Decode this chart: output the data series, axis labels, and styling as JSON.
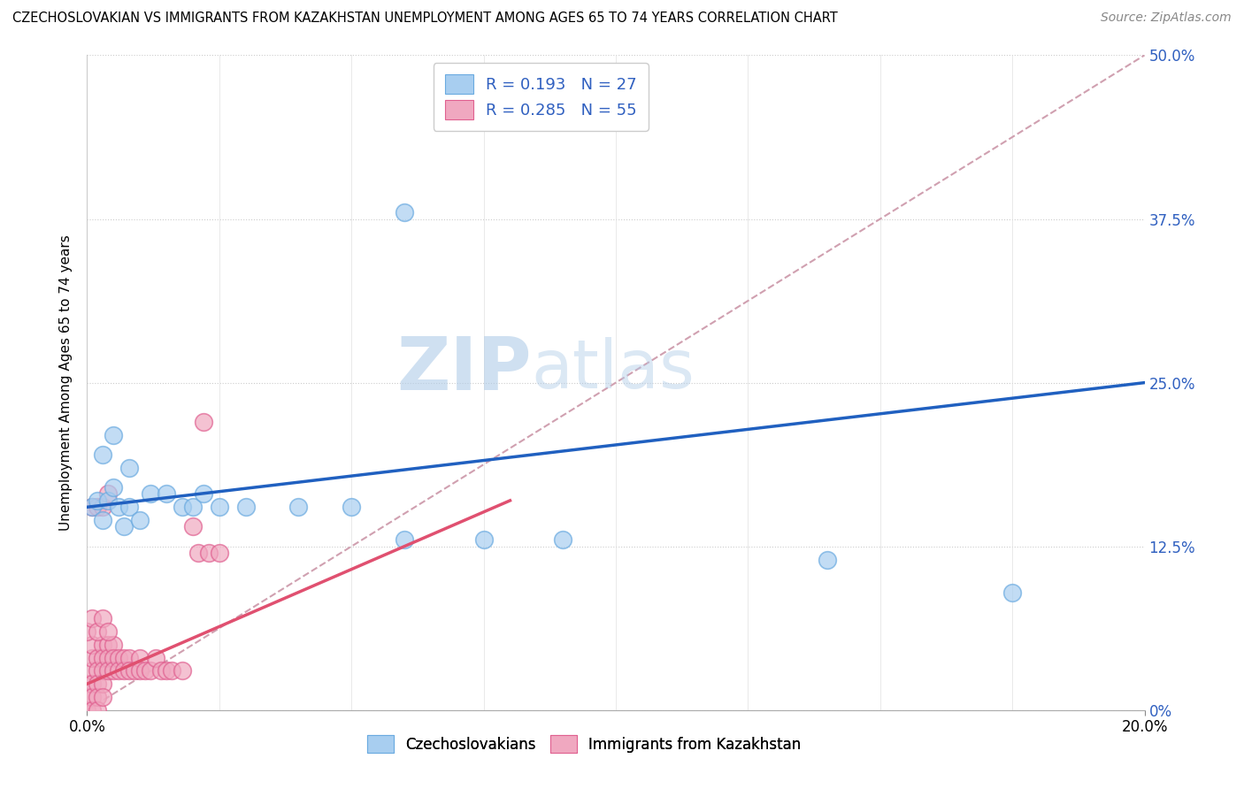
{
  "title": "CZECHOSLOVAKIAN VS IMMIGRANTS FROM KAZAKHSTAN UNEMPLOYMENT AMONG AGES 65 TO 74 YEARS CORRELATION CHART",
  "source": "Source: ZipAtlas.com",
  "ylabel": "Unemployment Among Ages 65 to 74 years",
  "xlim": [
    0.0,
    0.2
  ],
  "ylim": [
    0.0,
    0.5
  ],
  "ytick_values": [
    0.0,
    0.125,
    0.25,
    0.375,
    0.5
  ],
  "ytick_labels": [
    "0%",
    "12.5%",
    "25.0%",
    "37.5%",
    "50.0%"
  ],
  "legend_R1": "R = 0.193",
  "legend_N1": "N = 27",
  "legend_R2": "R = 0.285",
  "legend_N2": "N = 55",
  "color_czech": "#a8cef0",
  "color_czech_edge": "#6aaae0",
  "color_kazakh": "#f0a8c0",
  "color_kazakh_edge": "#e06090",
  "color_czech_line": "#2060c0",
  "color_kazakh_line": "#e05070",
  "color_diag_line": "#d0a0b0",
  "watermark_zip": "ZIP",
  "watermark_atlas": "atlas",
  "czech_x": [
    0.001,
    0.002,
    0.003,
    0.004,
    0.005,
    0.006,
    0.007,
    0.008,
    0.01,
    0.012,
    0.015,
    0.018,
    0.02,
    0.025,
    0.03,
    0.04,
    0.05,
    0.06,
    0.075,
    0.09,
    0.14,
    0.175,
    0.003,
    0.005,
    0.008,
    0.022,
    0.06
  ],
  "czech_y": [
    0.155,
    0.16,
    0.145,
    0.16,
    0.17,
    0.155,
    0.14,
    0.155,
    0.145,
    0.165,
    0.165,
    0.155,
    0.155,
    0.155,
    0.155,
    0.155,
    0.155,
    0.13,
    0.13,
    0.13,
    0.115,
    0.09,
    0.195,
    0.21,
    0.185,
    0.165,
    0.38
  ],
  "kazakh_x": [
    0.0,
    0.0,
    0.0,
    0.001,
    0.001,
    0.001,
    0.001,
    0.001,
    0.001,
    0.002,
    0.002,
    0.002,
    0.002,
    0.002,
    0.003,
    0.003,
    0.003,
    0.003,
    0.003,
    0.004,
    0.004,
    0.004,
    0.005,
    0.005,
    0.005,
    0.006,
    0.006,
    0.007,
    0.007,
    0.008,
    0.008,
    0.009,
    0.01,
    0.01,
    0.011,
    0.012,
    0.013,
    0.014,
    0.015,
    0.016,
    0.018,
    0.02,
    0.021,
    0.023,
    0.025,
    0.0,
    0.001,
    0.002,
    0.003,
    0.004,
    0.001,
    0.002,
    0.003,
    0.004,
    0.022
  ],
  "kazakh_y": [
    0.02,
    0.01,
    0.0,
    0.03,
    0.02,
    0.01,
    0.0,
    0.04,
    0.05,
    0.04,
    0.03,
    0.02,
    0.01,
    0.0,
    0.05,
    0.04,
    0.03,
    0.02,
    0.01,
    0.05,
    0.04,
    0.03,
    0.05,
    0.04,
    0.03,
    0.04,
    0.03,
    0.04,
    0.03,
    0.04,
    0.03,
    0.03,
    0.04,
    0.03,
    0.03,
    0.03,
    0.04,
    0.03,
    0.03,
    0.03,
    0.03,
    0.14,
    0.12,
    0.12,
    0.12,
    0.06,
    0.07,
    0.06,
    0.07,
    0.06,
    0.155,
    0.155,
    0.155,
    0.165,
    0.22
  ]
}
